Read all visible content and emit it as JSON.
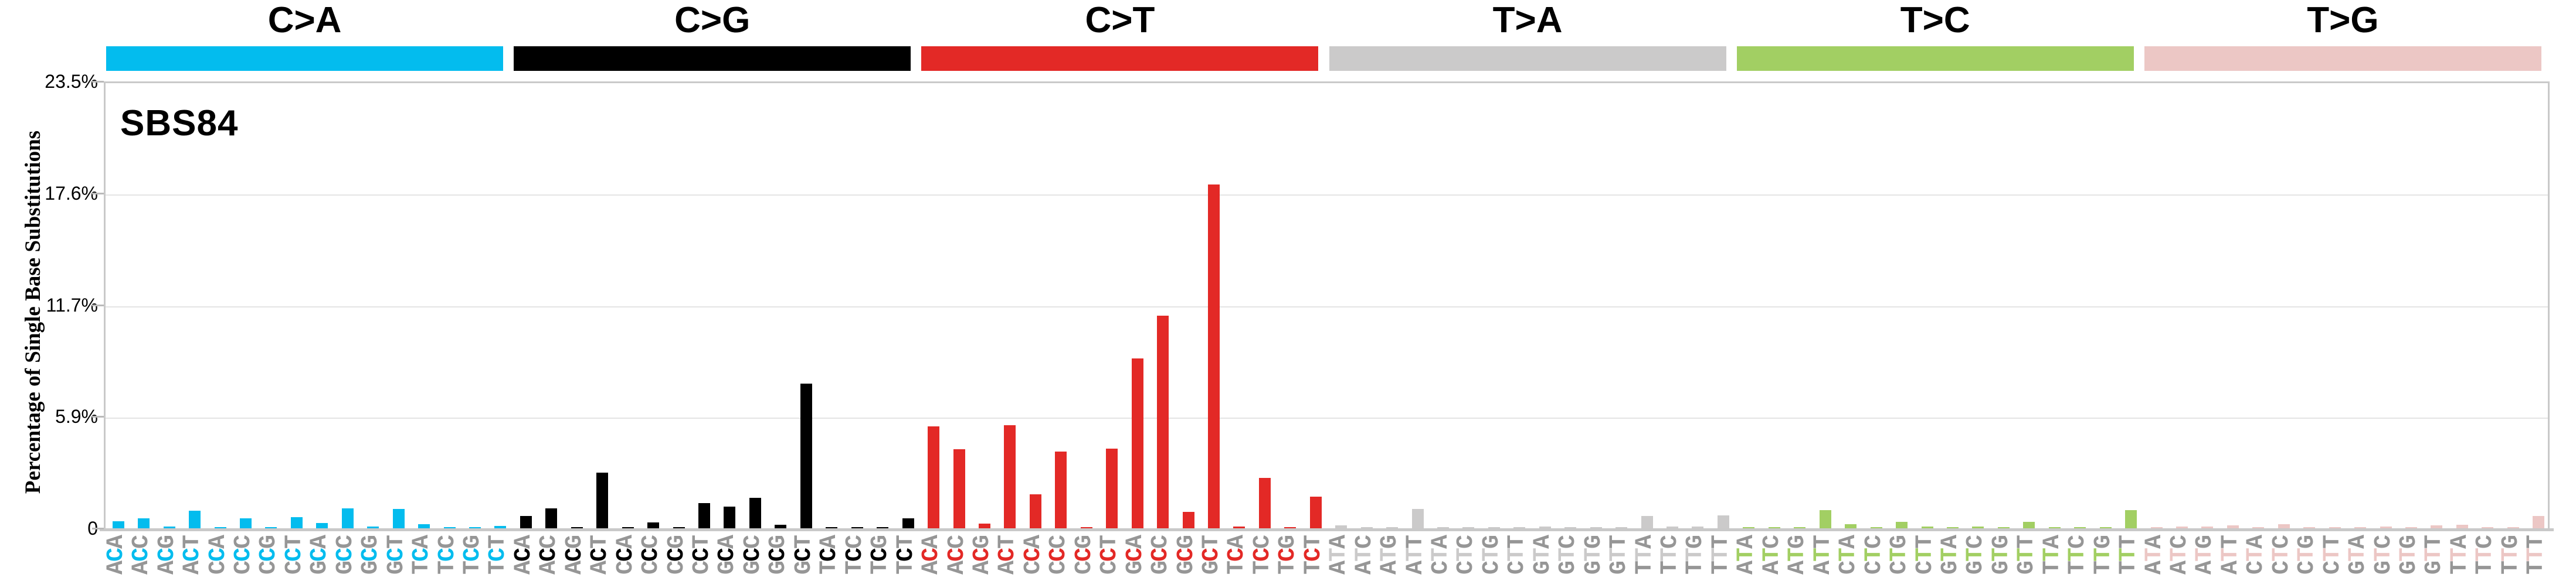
{
  "title": "SBS84",
  "y_axis": {
    "label": "Percentage of Single Base Substitutions",
    "ticks": [
      {
        "text": "0",
        "value": 0
      },
      {
        "text": "5.9%",
        "value": 5.875
      },
      {
        "text": "11.7%",
        "value": 11.75
      },
      {
        "text": "17.6%",
        "value": 17.625
      },
      {
        "text": "23.5%",
        "value": 23.5
      }
    ],
    "max": 23.5
  },
  "label_colors": {
    "outer_letter": "#969696"
  },
  "chart_data": {
    "type": "bar",
    "title": "SBS84",
    "xlabel": "",
    "ylabel": "Percentage of Single Base Substitutions",
    "ylim": [
      0,
      23.5
    ],
    "grid": "horizontal",
    "legend_position": "none",
    "groups": [
      {
        "label": "C>A",
        "color": "#03BCEE",
        "categories": [
          "ACA",
          "ACC",
          "ACG",
          "ACT",
          "CCA",
          "CCC",
          "CCG",
          "CCT",
          "GCA",
          "GCC",
          "GCG",
          "GCT",
          "TCA",
          "TCC",
          "TCG",
          "TCT"
        ],
        "values": [
          0.38,
          0.52,
          0.08,
          0.92,
          0.02,
          0.52,
          0.03,
          0.59,
          0.28,
          1.05,
          0.1,
          1.03,
          0.22,
          0.02,
          0.01,
          0.13
        ]
      },
      {
        "label": "C>G",
        "color": "#000000",
        "categories": [
          "ACA",
          "ACC",
          "ACG",
          "ACT",
          "CCA",
          "CCC",
          "CCG",
          "CCT",
          "GCA",
          "GCC",
          "GCG",
          "GCT",
          "TCA",
          "TCC",
          "TCG",
          "TCT"
        ],
        "values": [
          0.66,
          1.05,
          0.02,
          2.93,
          0.02,
          0.32,
          0.02,
          1.33,
          1.13,
          1.6,
          0.17,
          7.62,
          0.02,
          0.04,
          0.01,
          0.51
        ]
      },
      {
        "label": "C>T",
        "color": "#E32926",
        "categories": [
          "ACA",
          "ACC",
          "ACG",
          "ACT",
          "CCA",
          "CCC",
          "CCG",
          "CCT",
          "GCA",
          "GCC",
          "GCG",
          "GCT",
          "TCA",
          "TCC",
          "TCG",
          "TCT"
        ],
        "values": [
          5.35,
          4.16,
          0.24,
          5.43,
          1.78,
          4.04,
          0.02,
          4.2,
          8.93,
          11.18,
          0.87,
          18.07,
          0.08,
          2.66,
          0.02,
          1.65
        ]
      },
      {
        "label": "T>A",
        "color": "#CBCACA",
        "categories": [
          "ATA",
          "ATC",
          "ATG",
          "ATT",
          "CTA",
          "CTC",
          "CTG",
          "CTT",
          "GTA",
          "GTC",
          "GTG",
          "GTT",
          "TTA",
          "TTC",
          "TTG",
          "TTT"
        ],
        "values": [
          0.16,
          0.05,
          0.04,
          1.02,
          0.01,
          0.05,
          0.06,
          0.04,
          0.1,
          0.03,
          0.05,
          0.04,
          0.64,
          0.09,
          0.08,
          0.67
        ]
      },
      {
        "label": "T>C",
        "color": "#A2CF63",
        "categories": [
          "ATA",
          "ATC",
          "ATG",
          "ATT",
          "CTA",
          "CTC",
          "CTG",
          "CTT",
          "GTA",
          "GTC",
          "GTG",
          "GTT",
          "TTA",
          "TTC",
          "TTG",
          "TTT"
        ],
        "values": [
          0.05,
          0.03,
          0.02,
          0.94,
          0.21,
          0.03,
          0.35,
          0.1,
          0.03,
          0.09,
          0.04,
          0.35,
          0.07,
          0.06,
          0.02,
          0.95
        ]
      },
      {
        "label": "T>G",
        "color": "#ECC7C5",
        "categories": [
          "ATA",
          "ATC",
          "ATG",
          "ATT",
          "CTA",
          "CTC",
          "CTG",
          "CTT",
          "GTA",
          "GTC",
          "GTG",
          "GTT",
          "TTA",
          "TTC",
          "TTG",
          "TTT"
        ],
        "values": [
          0.03,
          0.08,
          0.1,
          0.16,
          0.07,
          0.21,
          0.07,
          0.02,
          0.02,
          0.1,
          0.03,
          0.15,
          0.17,
          0.06,
          0.02,
          0.64
        ]
      }
    ]
  }
}
